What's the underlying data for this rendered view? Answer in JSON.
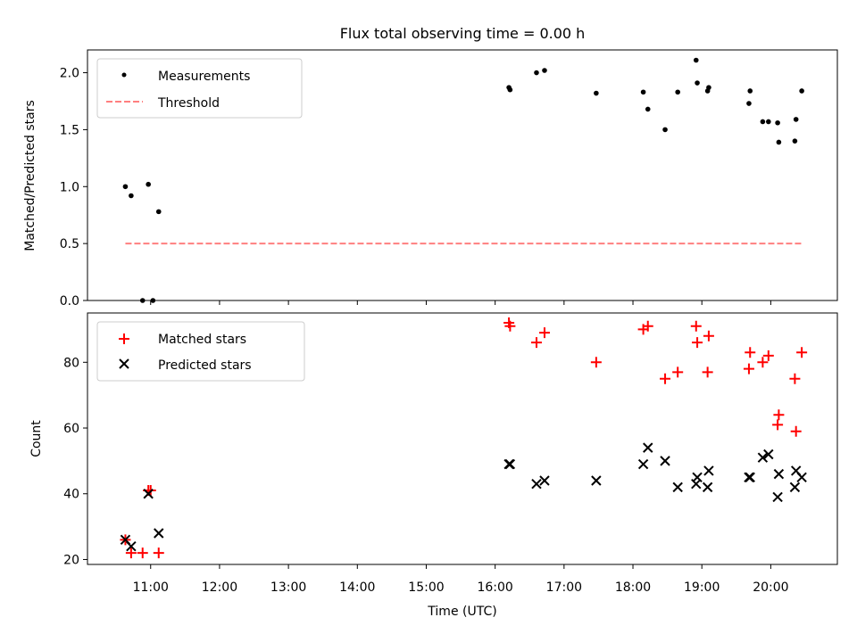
{
  "chart_data": [
    {
      "type": "scatter",
      "title": "Flux total observing time = 0.00 h",
      "ylabel": "Matched/Predicted stars",
      "ylim": [
        0.0,
        2.2
      ],
      "yticks": [
        "0.0",
        "0.5",
        "1.0",
        "1.5",
        "2.0"
      ],
      "yticks_values": [
        0.0,
        0.5,
        1.0,
        1.5,
        2.0
      ],
      "grid": false,
      "legend_position": "top-left",
      "series": [
        {
          "name": "Measurements",
          "marker": "dot",
          "color": "#000000",
          "points": [
            [
              "10:38",
              1.0
            ],
            [
              "10:43",
              0.92
            ],
            [
              "10:53",
              0.0
            ],
            [
              "10:58",
              1.02
            ],
            [
              "11:02",
              0.0
            ],
            [
              "11:07",
              0.78
            ],
            [
              "16:12",
              1.87
            ],
            [
              "16:13",
              1.85
            ],
            [
              "16:36",
              2.0
            ],
            [
              "16:43",
              2.02
            ],
            [
              "17:28",
              1.82
            ],
            [
              "18:09",
              1.83
            ],
            [
              "18:13",
              1.68
            ],
            [
              "18:28",
              1.5
            ],
            [
              "18:39",
              1.83
            ],
            [
              "18:55",
              2.11
            ],
            [
              "18:56",
              1.91
            ],
            [
              "19:05",
              1.84
            ],
            [
              "19:06",
              1.87
            ],
            [
              "19:41",
              1.73
            ],
            [
              "19:42",
              1.84
            ],
            [
              "19:53",
              1.57
            ],
            [
              "19:58",
              1.57
            ],
            [
              "20:06",
              1.56
            ],
            [
              "20:07",
              1.39
            ],
            [
              "20:21",
              1.4
            ],
            [
              "20:22",
              1.59
            ],
            [
              "20:27",
              1.84
            ]
          ]
        },
        {
          "name": "Threshold",
          "line_style": "dashed",
          "color": "#ff7f7f",
          "points": [
            [
              "10:38",
              0.5
            ],
            [
              "20:27",
              0.5
            ]
          ]
        }
      ]
    },
    {
      "type": "scatter",
      "xlabel": "Time (UTC)",
      "ylabel": "Count",
      "ylim": [
        18.5,
        95
      ],
      "yticks": [
        "20",
        "40",
        "60",
        "80"
      ],
      "yticks_values": [
        20,
        40,
        60,
        80
      ],
      "xlim": [
        "10:05",
        "20:58"
      ],
      "xticks": [
        "11:00",
        "12:00",
        "13:00",
        "14:00",
        "15:00",
        "16:00",
        "17:00",
        "18:00",
        "19:00",
        "20:00"
      ],
      "grid": false,
      "legend_position": "top-left",
      "series": [
        {
          "name": "Matched stars",
          "marker": "plus",
          "color": "#ff0000",
          "points": [
            [
              "10:38",
              26
            ],
            [
              "10:43",
              22
            ],
            [
              "10:53",
              22
            ],
            [
              "10:58",
              41
            ],
            [
              "11:00",
              41
            ],
            [
              "11:07",
              22
            ],
            [
              "16:12",
              92
            ],
            [
              "16:13",
              91
            ],
            [
              "16:36",
              86
            ],
            [
              "16:43",
              89
            ],
            [
              "17:28",
              80
            ],
            [
              "18:09",
              90
            ],
            [
              "18:13",
              91
            ],
            [
              "18:28",
              75
            ],
            [
              "18:39",
              77
            ],
            [
              "18:55",
              91
            ],
            [
              "18:56",
              86
            ],
            [
              "19:05",
              77
            ],
            [
              "19:06",
              88
            ],
            [
              "19:41",
              78
            ],
            [
              "19:42",
              83
            ],
            [
              "19:53",
              80
            ],
            [
              "19:58",
              82
            ],
            [
              "20:06",
              61
            ],
            [
              "20:07",
              64
            ],
            [
              "20:21",
              75
            ],
            [
              "20:22",
              59
            ],
            [
              "20:27",
              83
            ]
          ]
        },
        {
          "name": "Predicted stars",
          "marker": "x",
          "color": "#000000",
          "points": [
            [
              "10:38",
              26
            ],
            [
              "10:43",
              24
            ],
            [
              "10:58",
              40
            ],
            [
              "11:07",
              28
            ],
            [
              "16:12",
              49
            ],
            [
              "16:13",
              49
            ],
            [
              "16:36",
              43
            ],
            [
              "16:43",
              44
            ],
            [
              "17:28",
              44
            ],
            [
              "18:09",
              49
            ],
            [
              "18:13",
              54
            ],
            [
              "18:28",
              50
            ],
            [
              "18:39",
              42
            ],
            [
              "18:55",
              43
            ],
            [
              "18:56",
              45
            ],
            [
              "19:05",
              42
            ],
            [
              "19:06",
              47
            ],
            [
              "19:41",
              45
            ],
            [
              "19:42",
              45
            ],
            [
              "19:53",
              51
            ],
            [
              "19:58",
              52
            ],
            [
              "20:06",
              39
            ],
            [
              "20:07",
              46
            ],
            [
              "20:21",
              42
            ],
            [
              "20:22",
              47
            ],
            [
              "20:27",
              45
            ]
          ]
        }
      ]
    }
  ]
}
